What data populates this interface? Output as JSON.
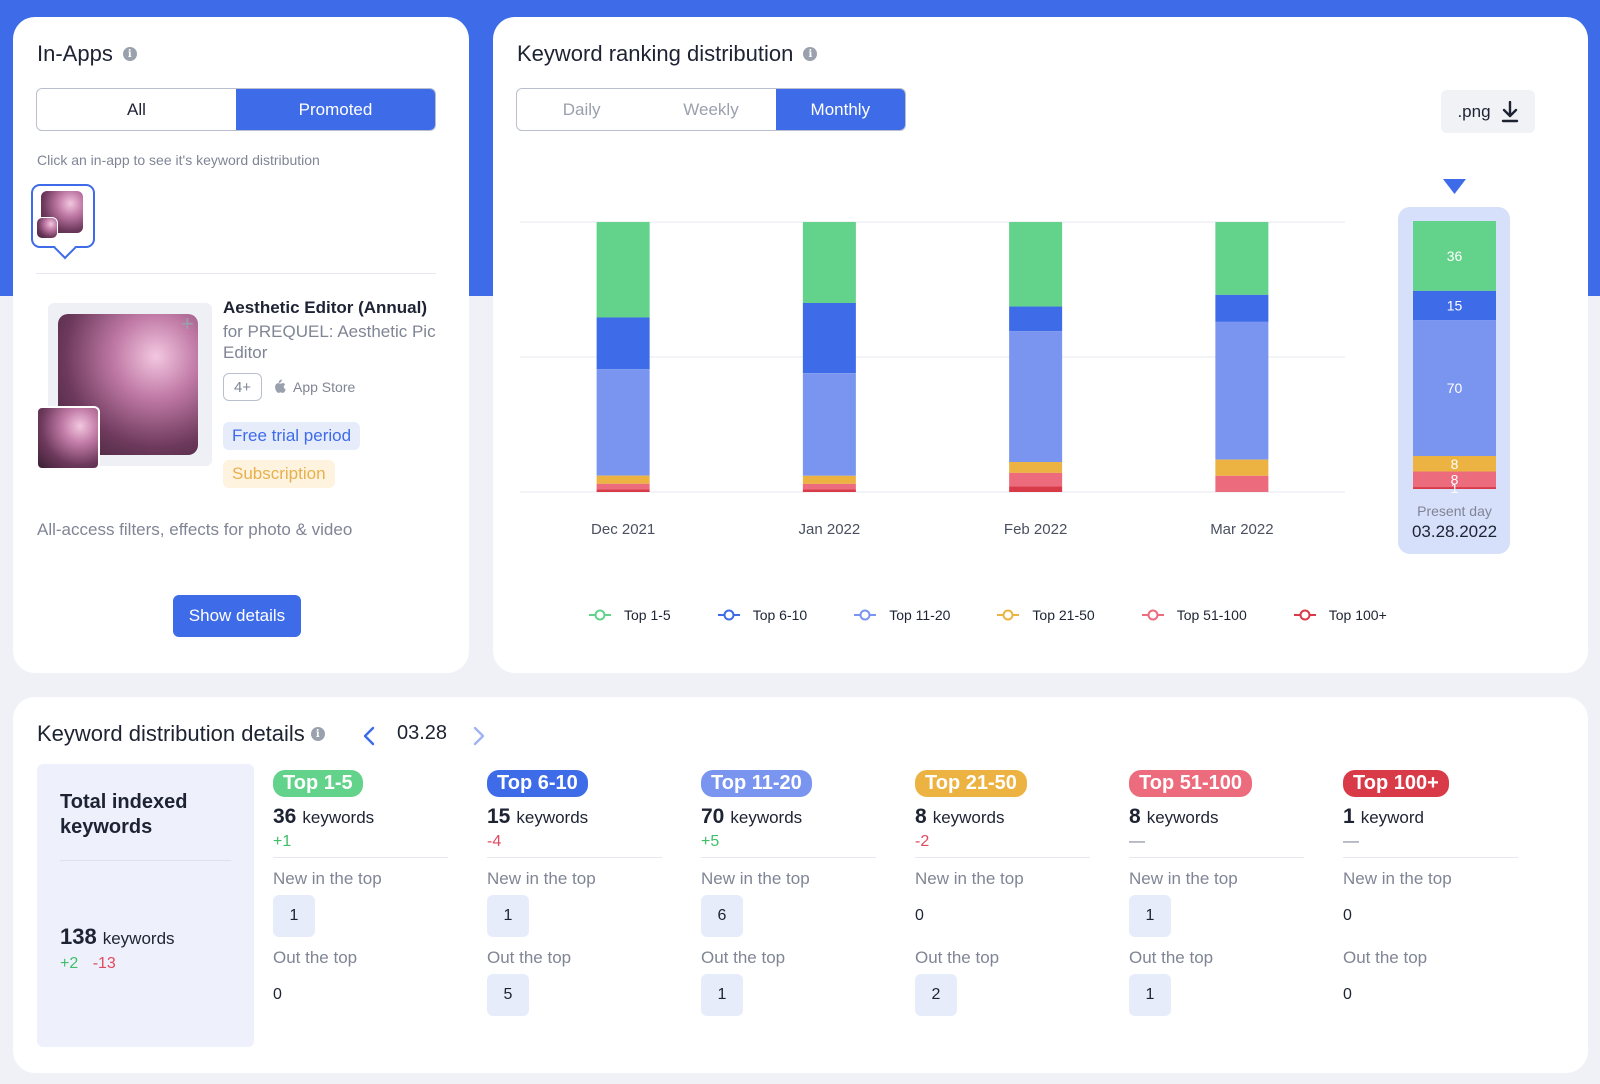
{
  "inapps": {
    "title": "In-Apps",
    "filter_all": "All",
    "filter_promoted": "Promoted",
    "hint": "Click an in-app to see it's keyword distribution",
    "app_name": "Aesthetic Editor (Annual)",
    "app_sub": "for PREQUEL: Aesthetic Pic Editor",
    "age": "4+",
    "store": "App Store",
    "tag_trial": "Free trial period",
    "tag_subscription": "Subscription",
    "description": "All-access filters, effects for photo & video",
    "show_details": "Show details"
  },
  "ranking": {
    "title": "Keyword ranking distribution",
    "tabs": {
      "daily": "Daily",
      "weekly": "Weekly",
      "monthly": "Monthly"
    },
    "export_label": ".png",
    "present_day_label": "Present day",
    "present_day_date": "03.28.2022"
  },
  "colors": {
    "top1_5": "#63d28a",
    "top6_10": "#3e6be8",
    "top11_20": "#7a95f0",
    "top21_50": "#ecb342",
    "top51_100": "#ec6b7d",
    "top100plus": "#d83a48",
    "accent": "#3e6be8"
  },
  "chart_data": {
    "type": "bar",
    "stacked": true,
    "categories": [
      "Dec 2021",
      "Jan 2022",
      "Feb 2022",
      "Mar 2022"
    ],
    "series": [
      {
        "name": "Top 1-5",
        "values": [
          35,
          30,
          31,
          27
        ]
      },
      {
        "name": "Top 6-10",
        "values": [
          19,
          26,
          9,
          10
        ]
      },
      {
        "name": "Top 11-20",
        "values": [
          39,
          38,
          48,
          51
        ]
      },
      {
        "name": "Top 21-50",
        "values": [
          3,
          3,
          4,
          6
        ]
      },
      {
        "name": "Top 51-100",
        "values": [
          2,
          2,
          5,
          6
        ]
      },
      {
        "name": "Top 100+",
        "values": [
          1,
          1,
          2,
          0
        ]
      }
    ],
    "present_day": {
      "values": [
        36,
        15,
        70,
        8,
        8,
        1
      ]
    },
    "grid": true,
    "legend_position": "bottom"
  },
  "details": {
    "title": "Keyword distribution details",
    "date": "03.28",
    "total_title": "Total indexed keywords",
    "total_count": "138",
    "total_unit": "keywords",
    "total_plus": "+2",
    "total_minus": "-13",
    "new_label": "New in the top",
    "out_label": "Out the top",
    "columns": [
      {
        "label": "Top 1-5",
        "count": "36",
        "unit": "keywords",
        "delta": "+1",
        "new": "1",
        "out": "0"
      },
      {
        "label": "Top 6-10",
        "count": "15",
        "unit": "keywords",
        "delta": "-4",
        "new": "1",
        "out": "5"
      },
      {
        "label": "Top 11-20",
        "count": "70",
        "unit": "keywords",
        "delta": "+5",
        "new": "6",
        "out": "1"
      },
      {
        "label": "Top 21-50",
        "count": "8",
        "unit": "keywords",
        "delta": "-2",
        "new": "0",
        "out": "2"
      },
      {
        "label": "Top 51-100",
        "count": "8",
        "unit": "keywords",
        "delta": "—",
        "new": "1",
        "out": "1"
      },
      {
        "label": "Top 100+",
        "count": "1",
        "unit": "keyword",
        "delta": "—",
        "new": "0",
        "out": "0"
      }
    ]
  }
}
